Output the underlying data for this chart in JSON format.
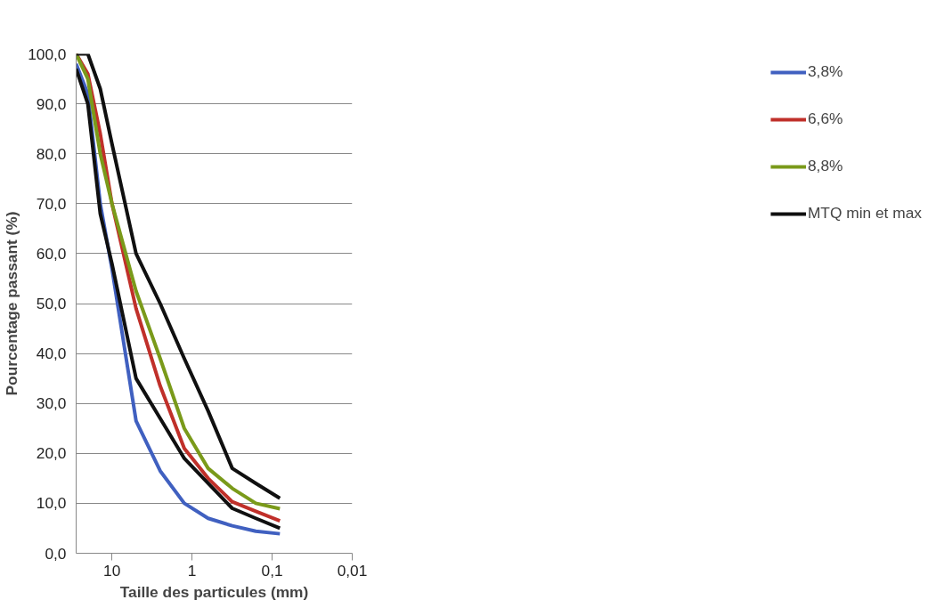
{
  "chart_data": {
    "type": "line",
    "xlabel": "Taille des particules (mm)",
    "ylabel": "Pourcentage passant (%)",
    "x": [
      28,
      20,
      14,
      10,
      5,
      2.5,
      1.25,
      0.63,
      0.315,
      0.16,
      0.08
    ],
    "series": [
      {
        "name": "3,8%",
        "color": "#4060c0",
        "values": [
          98,
          92,
          70,
          57,
          26.5,
          16.5,
          10,
          7,
          5.5,
          4.4,
          3.9
        ]
      },
      {
        "name": "6,6%",
        "color": "#c0302a",
        "values": [
          100,
          96,
          84,
          70,
          49,
          33.5,
          21,
          15,
          10.3,
          8.4,
          6.5
        ]
      },
      {
        "name": "8,8%",
        "color": "#7a9a1a",
        "values": [
          100,
          95,
          80,
          70,
          52.5,
          39,
          25,
          17,
          13,
          10,
          8.9
        ]
      },
      {
        "name": "MTQ min et max",
        "color": "#101010",
        "values": [
          100,
          100,
          93,
          82,
          60,
          50,
          39,
          28.5,
          17,
          14,
          11
        ]
      },
      {
        "color": "#101010",
        "values": [
          97,
          90,
          68,
          58,
          35,
          27,
          19,
          14,
          9,
          7,
          5
        ]
      }
    ],
    "log": "x",
    "xlim": [
      28,
      0.01
    ],
    "xticks": [
      {
        "value": 10,
        "label": "10"
      },
      {
        "value": 1,
        "label": "1"
      },
      {
        "value": 0.1,
        "label": "0,1"
      },
      {
        "value": 0.01,
        "label": "0,01"
      }
    ],
    "ylim": [
      0,
      100
    ],
    "yticks": [
      {
        "value": 0,
        "label": "0,0"
      },
      {
        "value": 10,
        "label": "10,0"
      },
      {
        "value": 20,
        "label": "20,0"
      },
      {
        "value": 30,
        "label": "30,0"
      },
      {
        "value": 40,
        "label": "40,0"
      },
      {
        "value": 50,
        "label": "50,0"
      },
      {
        "value": 60,
        "label": "60,0"
      },
      {
        "value": 70,
        "label": "70,0"
      },
      {
        "value": 80,
        "label": "80,0"
      },
      {
        "value": 90,
        "label": "90,0"
      },
      {
        "value": 100,
        "label": "100,0"
      }
    ],
    "grid": "y",
    "legend": "right",
    "marker": "none",
    "line_style": "solid"
  }
}
